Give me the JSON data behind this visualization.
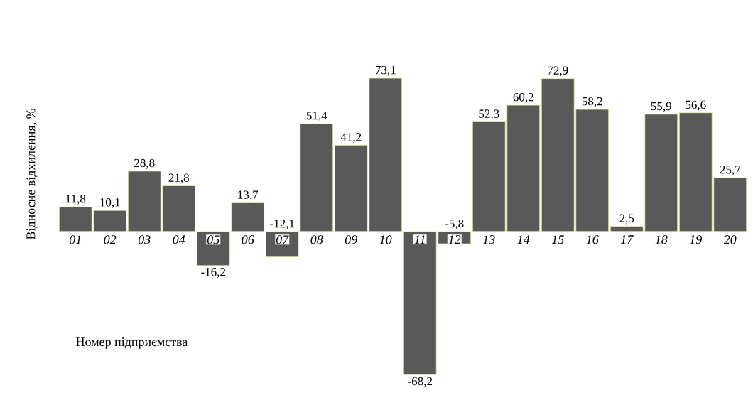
{
  "chart_data": {
    "type": "bar",
    "categories": [
      "01",
      "02",
      "03",
      "04",
      "05",
      "06",
      "07",
      "08",
      "09",
      "10",
      "11",
      "12",
      "13",
      "14",
      "15",
      "16",
      "17",
      "18",
      "19",
      "20"
    ],
    "values": [
      11.8,
      10.1,
      28.8,
      21.8,
      -16.2,
      13.7,
      -12.1,
      51.4,
      41.2,
      73.1,
      -68.2,
      -5.8,
      52.3,
      60.2,
      72.9,
      58.2,
      2.5,
      55.9,
      56.6,
      25.7
    ],
    "value_labels": [
      "11,8",
      "10,1",
      "28,8",
      "21,8",
      "-16,2",
      "13,7",
      "-12,1",
      "51,4",
      "41,2",
      "73,1",
      "-68,2",
      "-5,8",
      "52,3",
      "60,2",
      "72,9",
      "58,2",
      "2,5",
      "55,9",
      "56,6",
      "25,7"
    ],
    "color": "#595959",
    "xlabel": "Номер підприємства",
    "ylabel": "Відносне відхилення, %"
  }
}
